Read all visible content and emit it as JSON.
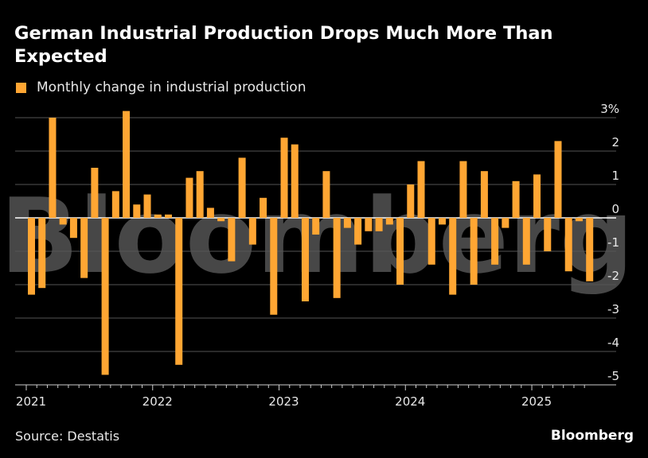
{
  "title": "German Industrial Production Drops Much More Than Expected",
  "source": "Source: Destatis",
  "brand": "Bloomberg",
  "watermark": "Bloomberg",
  "colors": {
    "bar": "#FFA633",
    "background": "#000000",
    "grid": "#555555"
  },
  "chart_data": {
    "type": "bar",
    "legend": [
      "Monthly change in industrial production"
    ],
    "y_unit": "%",
    "ylim": [
      -5,
      3
    ],
    "y_ticks": [
      3,
      2,
      1,
      0,
      -1,
      -2,
      -3,
      -4,
      -5
    ],
    "y_tick_labels": [
      "3%",
      "2",
      "1",
      "0",
      "-1",
      "-2",
      "-3",
      "-4",
      "-5"
    ],
    "x_tick_labels": [
      "2021",
      "2022",
      "2023",
      "2024",
      "2025"
    ],
    "categories": [
      "2021-01",
      "2021-02",
      "2021-03",
      "2021-04",
      "2021-05",
      "2021-06",
      "2021-07",
      "2021-08",
      "2021-09",
      "2021-10",
      "2021-11",
      "2021-12",
      "2022-01",
      "2022-02",
      "2022-03",
      "2022-04",
      "2022-05",
      "2022-06",
      "2022-07",
      "2022-08",
      "2022-09",
      "2022-10",
      "2022-11",
      "2022-12",
      "2023-01",
      "2023-02",
      "2023-03",
      "2023-04",
      "2023-05",
      "2023-06",
      "2023-07",
      "2023-08",
      "2023-09",
      "2023-10",
      "2023-11",
      "2023-12",
      "2024-01",
      "2024-02",
      "2024-03",
      "2024-04",
      "2024-05",
      "2024-06",
      "2024-07",
      "2024-08",
      "2024-09",
      "2024-10",
      "2024-11",
      "2024-12",
      "2025-01",
      "2025-02",
      "2025-03",
      "2025-04",
      "2025-05",
      "2025-06"
    ],
    "series": [
      {
        "name": "Monthly change in industrial production",
        "values": [
          -2.3,
          -2.1,
          3.0,
          -0.2,
          -0.6,
          -1.8,
          1.5,
          -4.7,
          0.8,
          3.2,
          0.4,
          0.7,
          0.1,
          0.1,
          -4.4,
          1.2,
          1.4,
          0.3,
          -0.1,
          -1.3,
          1.8,
          -0.8,
          0.6,
          -2.9,
          2.4,
          2.2,
          -2.5,
          -0.5,
          1.4,
          -2.4,
          -0.3,
          -0.8,
          -0.4,
          -0.4,
          -0.2,
          -2.0,
          1.0,
          1.7,
          -1.4,
          -0.2,
          -2.3,
          1.7,
          -2.0,
          1.4,
          -1.4,
          -0.3,
          1.1,
          -1.4,
          1.3,
          -1.0,
          2.3,
          -1.6,
          -0.1,
          -1.9
        ]
      }
    ]
  }
}
